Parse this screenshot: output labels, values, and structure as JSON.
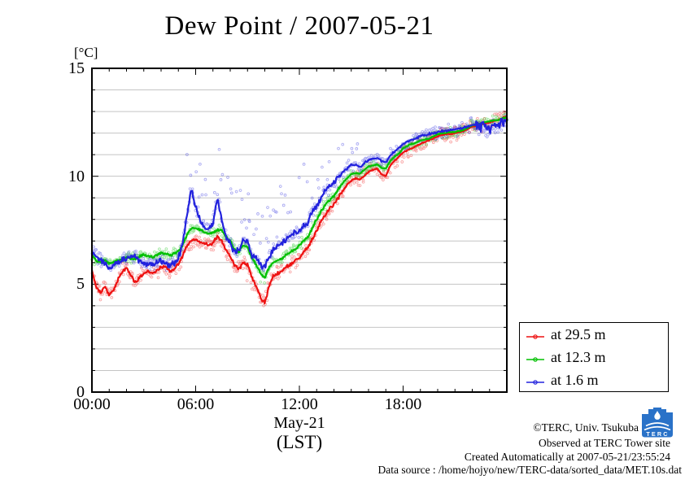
{
  "chart_data": {
    "type": "scatter",
    "title": "Dew Point / 2007-05-21",
    "y_unit": "[°C]",
    "xlabel_line1": "May-21",
    "xlabel_line2": "(LST)",
    "xlim": [
      0,
      24
    ],
    "ylim": [
      0,
      15
    ],
    "grid": "horizontal gridlines every 1 degC, no vertical gridlines",
    "legend_position": "outside right-bottom, boxed",
    "x_minor_step": 1,
    "y_minor_step": 1,
    "x_major_ticks": [
      {
        "t": 0,
        "label": "00:00"
      },
      {
        "t": 6,
        "label": "06:00"
      },
      {
        "t": 12,
        "label": "12:00"
      },
      {
        "t": 18,
        "label": "18:00"
      }
    ],
    "y_major_ticks": [
      {
        "v": 0,
        "label": "0"
      },
      {
        "v": 5,
        "label": "5"
      },
      {
        "v": 10,
        "label": "10"
      },
      {
        "v": 15,
        "label": "15"
      }
    ],
    "t_start": 0,
    "t_step": 0.25,
    "series": [
      {
        "id": "29_5m",
        "label": "at 29.5 m",
        "color": "#ee1111",
        "spread": 0.42,
        "jitter": 0.09,
        "end_noise": false,
        "outliers": [
          {
            "from": 0.2,
            "to": 1.2,
            "prob": 0.05,
            "lo": -0.7,
            "hi": -0.3
          },
          {
            "from": 8.7,
            "to": 10.4,
            "prob": 0.1,
            "lo": -0.9,
            "hi": -0.3
          },
          {
            "from": 16.9,
            "to": 17.6,
            "prob": 0.06,
            "lo": -1.0,
            "hi": -0.4
          }
        ],
        "values": [
          5.6,
          4.9,
          4.6,
          4.9,
          4.5,
          4.7,
          5.2,
          5.6,
          5.8,
          5.4,
          5.1,
          5.3,
          5.5,
          5.6,
          5.5,
          5.6,
          5.8,
          5.8,
          5.6,
          5.7,
          5.9,
          6.3,
          6.8,
          7.0,
          7.1,
          6.9,
          6.9,
          6.8,
          6.9,
          7.2,
          7.0,
          6.6,
          6.3,
          5.9,
          5.7,
          6.0,
          5.9,
          5.3,
          4.9,
          4.4,
          4.1,
          4.9,
          5.4,
          5.5,
          5.6,
          5.8,
          5.9,
          6.1,
          6.2,
          6.5,
          6.7,
          7.1,
          7.5,
          7.9,
          8.2,
          8.5,
          8.7,
          9.0,
          9.3,
          9.6,
          9.8,
          9.9,
          9.85,
          10.0,
          10.2,
          10.3,
          10.35,
          10.1,
          10.0,
          10.5,
          10.7,
          10.9,
          11.1,
          11.2,
          11.3,
          11.4,
          11.5,
          11.6,
          11.65,
          11.75,
          11.85,
          11.9,
          11.95,
          11.95,
          12.0,
          12.05,
          12.1,
          12.2,
          12.3,
          12.35,
          12.4,
          12.45,
          12.5,
          12.55,
          12.6,
          12.7,
          12.8
        ]
      },
      {
        "id": "12_3m",
        "label": "at 12.3 m",
        "color": "#00c000",
        "spread": 0.28,
        "jitter": 0.07,
        "end_noise": false,
        "outliers": [
          {
            "from": 9.4,
            "to": 10.3,
            "prob": 0.05,
            "lo": -0.9,
            "hi": -0.3
          }
        ],
        "values": [
          6.3,
          6.1,
          6.0,
          6.1,
          5.95,
          6.05,
          6.1,
          6.15,
          6.25,
          6.2,
          6.15,
          6.3,
          6.35,
          6.3,
          6.25,
          6.35,
          6.45,
          6.4,
          6.35,
          6.4,
          6.5,
          6.8,
          7.3,
          7.6,
          7.6,
          7.5,
          7.4,
          7.35,
          7.4,
          7.5,
          7.5,
          7.2,
          7.0,
          6.6,
          6.5,
          6.8,
          6.7,
          6.2,
          5.9,
          5.5,
          5.3,
          5.8,
          6.0,
          6.1,
          6.2,
          6.35,
          6.5,
          6.6,
          6.8,
          7.0,
          7.2,
          7.6,
          8.0,
          8.35,
          8.7,
          8.9,
          9.1,
          9.4,
          9.7,
          9.9,
          10.1,
          10.15,
          10.1,
          10.3,
          10.45,
          10.5,
          10.55,
          10.4,
          10.35,
          10.7,
          10.9,
          11.05,
          11.3,
          11.4,
          11.5,
          11.55,
          11.65,
          11.7,
          11.75,
          11.85,
          11.95,
          12.0,
          12.0,
          12.05,
          12.05,
          12.1,
          12.15,
          12.25,
          12.35,
          12.4,
          12.45,
          12.5,
          12.55,
          12.6,
          12.6,
          12.68,
          12.75
        ]
      },
      {
        "id": "1_6m",
        "label": "at 1.6 m",
        "color": "#2222dd",
        "spread": 0.38,
        "jitter": 0.17,
        "end_noise": true,
        "outliers": [
          {
            "from": 5.4,
            "to": 12.5,
            "prob": 0.22,
            "lo": 0.4,
            "hi": 3.0
          },
          {
            "from": 12.5,
            "to": 15.4,
            "prob": 0.12,
            "lo": 0.3,
            "hi": 1.4
          },
          {
            "from": 22.3,
            "to": 24.0,
            "prob": 0.25,
            "lo": -0.55,
            "hi": -0.1
          }
        ],
        "values": [
          6.45,
          6.3,
          6.1,
          5.9,
          5.75,
          5.9,
          6.05,
          6.1,
          6.2,
          6.3,
          6.25,
          6.1,
          6.0,
          5.95,
          5.9,
          6.0,
          6.1,
          6.0,
          5.85,
          5.95,
          6.2,
          6.9,
          8.2,
          9.4,
          8.6,
          8.0,
          7.6,
          7.5,
          7.8,
          9.0,
          8.0,
          7.2,
          6.9,
          6.5,
          6.6,
          7.1,
          7.0,
          6.3,
          6.2,
          5.9,
          5.8,
          6.3,
          6.6,
          6.8,
          6.9,
          7.1,
          7.3,
          7.4,
          7.5,
          7.7,
          7.9,
          8.3,
          8.6,
          9.0,
          9.3,
          9.5,
          9.7,
          9.95,
          10.2,
          10.35,
          10.5,
          10.5,
          10.45,
          10.6,
          10.75,
          10.8,
          10.85,
          10.7,
          10.65,
          10.95,
          11.15,
          11.3,
          11.5,
          11.6,
          11.7,
          11.75,
          11.85,
          11.9,
          11.95,
          12.0,
          12.05,
          12.1,
          12.1,
          12.15,
          12.15,
          12.2,
          12.25,
          12.3,
          12.4,
          12.35,
          12.2,
          12.4,
          12.15,
          12.45,
          12.3,
          12.6,
          12.7
        ]
      }
    ]
  },
  "footer": {
    "copyright": "©TERC, Univ. Tsukuba",
    "observed": "Observed at TERC Tower site",
    "created": "Created Automatically at 2007-05-21/23:55:24",
    "datasource": "Data source : /home/hojyo/new/TERC-data/sorted_data/MET.10s.dat"
  },
  "logo": {
    "text": "TERC",
    "color": "#2a72c8"
  }
}
